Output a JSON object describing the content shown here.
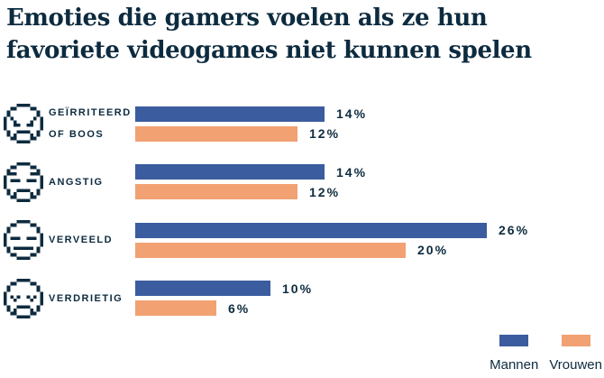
{
  "header": {
    "title": "Emoties die gamers voelen als ze hun favoriete videogames niet kunnen spelen",
    "title_lines": [
      "Emoties die gamers voelen als ze hun",
      "favoriete videogames niet kunnen spelen"
    ]
  },
  "colors": {
    "text": "#0D2B3F",
    "mannen_blue": "#3B5C9E",
    "vrouwen_orange": "#F2A173",
    "background": "#FFFFFF"
  },
  "chart_data": {
    "type": "bar",
    "orientation": "horizontal",
    "title": "Emoties die gamers voelen als ze hun favoriete videogames niet kunnen spelen",
    "categories": [
      "Geïrriteerd of boos",
      "Angstig",
      "Verveeld",
      "Verdrietig"
    ],
    "category_label_lines": [
      [
        "GEÏRRITEERD",
        "OF BOOS"
      ],
      [
        "ANGSTIG"
      ],
      [
        "VERVEELD"
      ],
      [
        "VERDRIETIG"
      ]
    ],
    "category_icons": [
      "angry-face-icon",
      "anxious-face-icon",
      "bored-face-icon",
      "sad-face-icon"
    ],
    "series": [
      {
        "name": "Mannen",
        "color": "#3B5C9E",
        "values": [
          14,
          14,
          26,
          10
        ]
      },
      {
        "name": "Vrouwen",
        "color": "#F2A173",
        "values": [
          12,
          12,
          20,
          6
        ]
      }
    ],
    "value_suffix": "%",
    "value_labels": [
      [
        "14%",
        "12%"
      ],
      [
        "14%",
        "12%"
      ],
      [
        "26%",
        "20%"
      ],
      [
        "10%",
        "6%"
      ]
    ],
    "xlim": [
      0,
      30
    ],
    "grid": false,
    "legend_position": "bottom-right"
  },
  "legend": {
    "items": [
      {
        "label": "Mannen",
        "color": "#3B5C9E"
      },
      {
        "label": "Vrouwen",
        "color": "#F2A173"
      }
    ]
  }
}
